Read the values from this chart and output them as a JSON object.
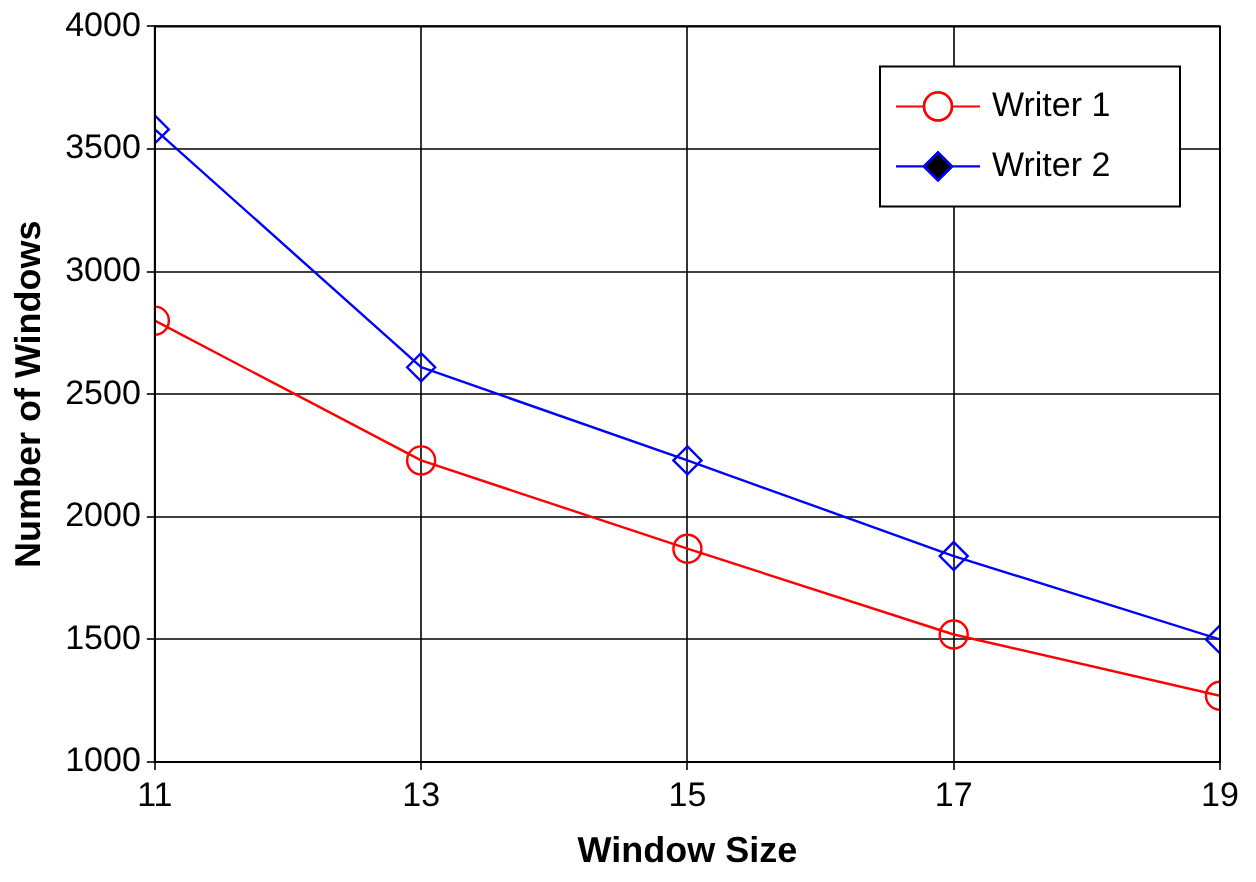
{
  "chart_data": {
    "type": "line",
    "xlabel": "Window Size",
    "ylabel": "Number of Windows",
    "x": [
      11,
      13,
      15,
      17,
      19
    ],
    "series": [
      {
        "name": "Writer 1",
        "color": "#ff0000",
        "marker": "circle",
        "values": [
          2800,
          2230,
          1870,
          1520,
          1270
        ]
      },
      {
        "name": "Writer 2",
        "color": "#0000ff",
        "marker": "diamond",
        "values": [
          3580,
          2610,
          2230,
          1840,
          1500
        ]
      }
    ],
    "xlim": [
      11,
      19
    ],
    "xticks": [
      11,
      13,
      15,
      17,
      19
    ],
    "ylim": [
      1000,
      4000
    ],
    "yticks": [
      1000,
      1500,
      2000,
      2500,
      3000,
      3500,
      4000
    ],
    "grid": true,
    "legend": "top right",
    "line_style": "solid"
  }
}
